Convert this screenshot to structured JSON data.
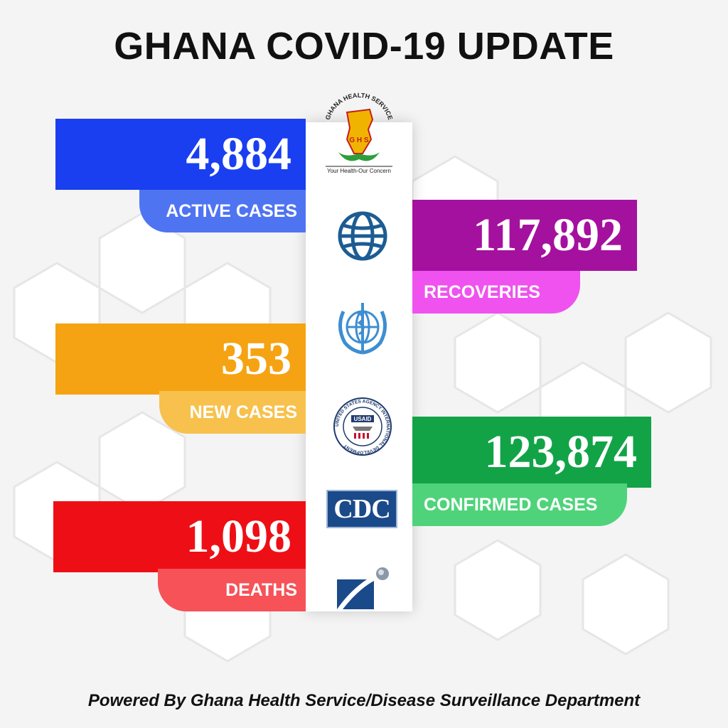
{
  "title": "GHANA COVID-19 UPDATE",
  "stats": {
    "active": {
      "value": "4,884",
      "label": "ACTIVE CASES",
      "color": "#1a3ff0",
      "label_color": "#4f74f2"
    },
    "recoveries": {
      "value": "117,892",
      "label": "RECOVERIES",
      "color": "#a4119e",
      "label_color": "#ef52ee"
    },
    "new_cases": {
      "value": "353",
      "label": "NEW CASES",
      "color": "#f5a312",
      "label_color": "#f8c14d"
    },
    "confirmed": {
      "value": "123,874",
      "label": "CONFIRMED CASES",
      "color": "#12a347",
      "label_color": "#4fd37a"
    },
    "deaths": {
      "value": "1,098",
      "label": "DEATHS",
      "color": "#ee0f16",
      "label_color": "#f65258"
    }
  },
  "logos": {
    "ghs": {
      "name": "GHANA HEALTH SERVICE",
      "initials": "G H S",
      "tagline": "Your Health-Our Concern"
    },
    "usaid": {
      "ring_text": "UNITED STATES AGENCY INTERNATIONAL DEVELOPMENT",
      "label": "USAID"
    },
    "cdc": {
      "label": "CDC"
    }
  },
  "footer": "Powered By Ghana Health Service/Disease Surveillance Department"
}
